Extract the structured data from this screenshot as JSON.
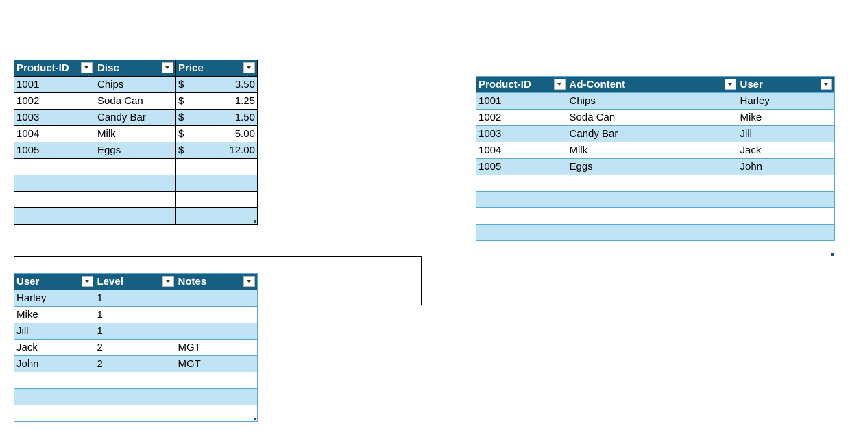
{
  "products": {
    "headers": [
      "Product-ID",
      "Disc",
      "Price"
    ],
    "rows": [
      {
        "id": "1001",
        "disc": "Chips",
        "currency": "$",
        "price": "3.50"
      },
      {
        "id": "1002",
        "disc": "Soda Can",
        "currency": "$",
        "price": "1.25"
      },
      {
        "id": "1003",
        "disc": "Candy Bar",
        "currency": "$",
        "price": "1.50"
      },
      {
        "id": "1004",
        "disc": "Milk",
        "currency": "$",
        "price": "5.00"
      },
      {
        "id": "1005",
        "disc": "Eggs",
        "currency": "$",
        "price": "12.00"
      },
      {
        "id": "",
        "disc": "",
        "currency": "",
        "price": ""
      },
      {
        "id": "",
        "disc": "",
        "currency": "",
        "price": ""
      },
      {
        "id": "",
        "disc": "",
        "currency": "",
        "price": ""
      },
      {
        "id": "",
        "disc": "",
        "currency": "",
        "price": ""
      }
    ]
  },
  "ads": {
    "headers": [
      "Product-ID",
      "Ad-Content",
      "User"
    ],
    "rows": [
      {
        "id": "1001",
        "content": "Chips",
        "user": "Harley"
      },
      {
        "id": "1002",
        "content": "Soda Can",
        "user": "Mike"
      },
      {
        "id": "1003",
        "content": "Candy Bar",
        "user": "Jill"
      },
      {
        "id": "1004",
        "content": "Milk",
        "user": "Jack"
      },
      {
        "id": "1005",
        "content": "Eggs",
        "user": "John"
      },
      {
        "id": "",
        "content": "",
        "user": ""
      },
      {
        "id": "",
        "content": "",
        "user": ""
      },
      {
        "id": "",
        "content": "",
        "user": ""
      },
      {
        "id": "",
        "content": "",
        "user": ""
      }
    ]
  },
  "users": {
    "headers": [
      "User",
      "Level",
      "Notes"
    ],
    "rows": [
      {
        "user": "Harley",
        "level": "1",
        "notes": ""
      },
      {
        "user": "Mike",
        "level": "1",
        "notes": ""
      },
      {
        "user": "Jill",
        "level": "1",
        "notes": ""
      },
      {
        "user": "Jack",
        "level": "2",
        "notes": "MGT"
      },
      {
        "user": "John",
        "level": "2",
        "notes": "MGT"
      },
      {
        "user": "",
        "level": "",
        "notes": ""
      },
      {
        "user": "",
        "level": "",
        "notes": ""
      },
      {
        "user": "",
        "level": "",
        "notes": ""
      }
    ]
  },
  "icons": {
    "filter": "filter-dropdown-icon",
    "resize": "table-resize-handle-icon"
  },
  "colors": {
    "header_bg": "#156082",
    "band_light": "#c0e4f5",
    "band_border": "#5aa6d4"
  }
}
